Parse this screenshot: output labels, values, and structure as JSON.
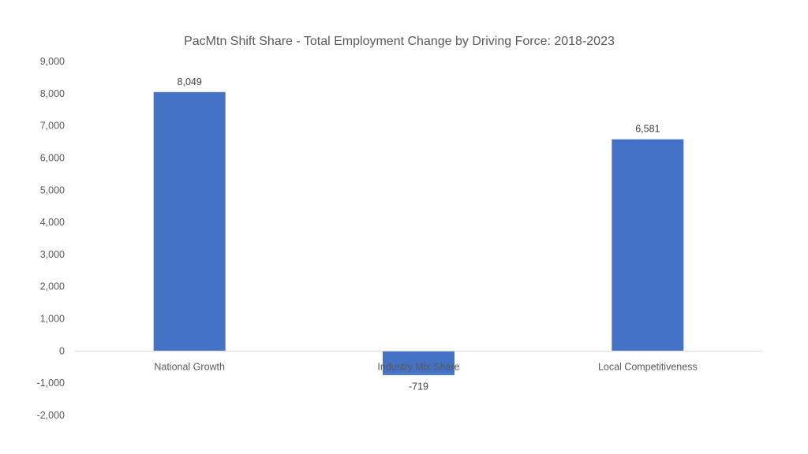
{
  "chart_data": {
    "type": "bar",
    "title": "PacMtn Shift Share - Total Employment Change by Driving Force: 2018-2023",
    "xlabel": "",
    "ylabel": "",
    "categories": [
      "National Growth",
      "Industry Mix Share",
      "Local Competitiveness"
    ],
    "values": [
      8049,
      -719,
      6581
    ],
    "data_labels": [
      "8,049",
      "-719",
      "6,581"
    ],
    "ylim": [
      -2000,
      9000
    ],
    "yticks": [
      9000,
      8000,
      7000,
      6000,
      5000,
      4000,
      3000,
      2000,
      1000,
      0,
      -1000,
      -2000
    ],
    "ytick_labels": [
      "9,000",
      "8,000",
      "7,000",
      "6,000",
      "5,000",
      "4,000",
      "3,000",
      "2,000",
      "1,000",
      "0",
      "-1,000",
      "-2,000"
    ],
    "grid": false,
    "legend": "none",
    "bar_color": "#4472C4"
  }
}
